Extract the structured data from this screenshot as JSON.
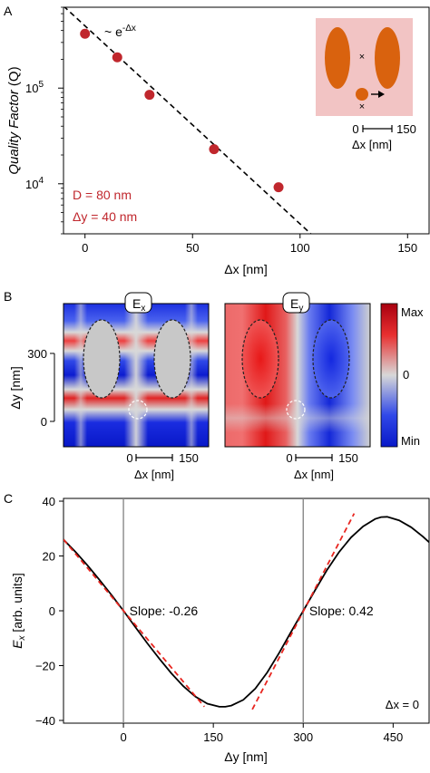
{
  "panels": {
    "a": "A",
    "b": "B",
    "c": "C"
  },
  "colors": {
    "marker": "#c0272d",
    "inset_bg": "#f2c4c4",
    "inset_shape": "#d9620e",
    "annotation": "#c0272d",
    "slope_line": "#e8251f",
    "heat_max": "#a80010",
    "heat_mid": "#d8d8d8",
    "heat_min": "#0818c8"
  },
  "chart_data": [
    {
      "id": "A",
      "type": "scatter",
      "xlabel": "Δx [nm]",
      "ylabel": "Quality Factor (Q)",
      "ylabel_italic_part": "Quality Factor",
      "ylabel_plain_part": "(Q)",
      "xlim": [
        -10,
        160
      ],
      "ylim": [
        3000,
        700000
      ],
      "yscale": "log",
      "xticks": [
        0,
        50,
        100,
        150
      ],
      "yticks": [
        {
          "value": 10000,
          "base": "10",
          "exp": "4"
        },
        {
          "value": 100000,
          "base": "10",
          "exp": "5"
        }
      ],
      "points": [
        {
          "x": 0,
          "y": 370000
        },
        {
          "x": 15,
          "y": 210000
        },
        {
          "x": 30,
          "y": 85000
        },
        {
          "x": 60,
          "y": 23000
        },
        {
          "x": 90,
          "y": 9200
        }
      ],
      "fit": {
        "style": "dashed",
        "from": [
          -10,
          720000
        ],
        "to": [
          105,
          3000
        ]
      },
      "fit_label": {
        "prefix": "~ e",
        "exp": "-Δx"
      },
      "annotations": [
        "D = 80 nm",
        "Δy = 40 nm"
      ],
      "inset": {
        "scale_start": "0",
        "scale_end": "150",
        "scale_label": "Δx [nm]"
      }
    },
    {
      "id": "B",
      "type": "heatmap",
      "maps": [
        {
          "label_base": "E",
          "label_sub": "x"
        },
        {
          "label_base": "E",
          "label_sub": "y"
        }
      ],
      "ylabel": "Δy [nm]",
      "yticks": [
        "300",
        "0"
      ],
      "scale_start": "0",
      "scale_end": "150",
      "scale_label": "Δx [nm]",
      "colorbar": {
        "max": "Max",
        "mid": "0",
        "min": "Min"
      }
    },
    {
      "id": "C",
      "type": "line",
      "xlabel": "Δy [nm]",
      "ylabel_base": "E",
      "ylabel_sub": "x",
      "ylabel_unit": "[arb. units]",
      "xlim": [
        -100,
        510
      ],
      "ylim": [
        -41,
        41
      ],
      "xticks": [
        0,
        150,
        300,
        450
      ],
      "yticks": [
        -40,
        -20,
        0,
        20,
        40
      ],
      "vlines": [
        0,
        300
      ],
      "curve": [
        [
          -100,
          26
        ],
        [
          -80,
          21.5
        ],
        [
          -60,
          16.6
        ],
        [
          -40,
          11.3
        ],
        [
          -20,
          5.8
        ],
        [
          0,
          0
        ],
        [
          20,
          -6
        ],
        [
          40,
          -11.9
        ],
        [
          60,
          -17.5
        ],
        [
          80,
          -22.8
        ],
        [
          100,
          -27.5
        ],
        [
          120,
          -31.3
        ],
        [
          140,
          -33.9
        ],
        [
          160,
          -35
        ],
        [
          170,
          -35
        ],
        [
          180,
          -34.6
        ],
        [
          200,
          -32.5
        ],
        [
          220,
          -28.4
        ],
        [
          240,
          -22.5
        ],
        [
          260,
          -15.3
        ],
        [
          280,
          -7.6
        ],
        [
          300,
          0
        ],
        [
          320,
          7.6
        ],
        [
          340,
          15
        ],
        [
          360,
          21.5
        ],
        [
          380,
          26.8
        ],
        [
          400,
          30.8
        ],
        [
          420,
          33.5
        ],
        [
          430,
          34.2
        ],
        [
          440,
          34.3
        ],
        [
          460,
          33
        ],
        [
          480,
          30.5
        ],
        [
          500,
          27
        ],
        [
          510,
          25
        ]
      ],
      "tangents": [
        {
          "from": [
            -100,
            26
          ],
          "to": [
            135,
            -35
          ]
        },
        {
          "from": [
            215,
            -36
          ],
          "to": [
            385,
            35.5
          ]
        }
      ],
      "slope_labels": [
        {
          "text": "Slope: -0.26",
          "x": 10,
          "y": 0
        },
        {
          "text": "Slope: 0.42",
          "x": 310,
          "y": 0
        }
      ],
      "corner_label": "Δx = 0"
    }
  ]
}
